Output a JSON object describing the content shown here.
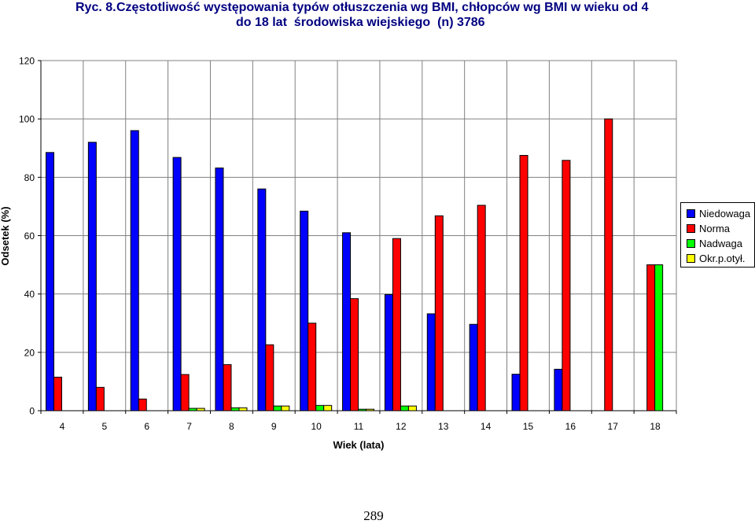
{
  "chart_data": {
    "type": "bar",
    "title_label": "Ryc. 8.",
    "title_line1": "Częstotliwość występowania typów otłuszczenia wg BMI, chłopców wg BMI w wieku od 4",
    "title_line2": "do 18 lat  środowiska wiejskiego  (n) 3786",
    "xlabel": "Wiek (lata)",
    "ylabel": "Odsetek (%)",
    "ylim": [
      0,
      120
    ],
    "yticks": [
      "0",
      "20",
      "40",
      "60",
      "80",
      "100",
      "120"
    ],
    "grid": true,
    "legend_position": "right",
    "categories": [
      "4",
      "5",
      "6",
      "7",
      "8",
      "9",
      "10",
      "11",
      "12",
      "13",
      "14",
      "15",
      "16",
      "17",
      "18"
    ],
    "series": [
      {
        "name": "Niedowaga",
        "color": "#0000FF",
        "values": [
          88.5,
          92,
          96,
          86.8,
          83.2,
          76,
          68.4,
          61,
          39.8,
          33.2,
          29.6,
          12.5,
          14.2,
          0,
          0
        ]
      },
      {
        "name": "Norma",
        "color": "#FF0000",
        "values": [
          11.5,
          8,
          4,
          12.4,
          15.8,
          22.6,
          30,
          38.4,
          59,
          66.8,
          70.4,
          87.5,
          85.8,
          100,
          50
        ]
      },
      {
        "name": "Nadwaga",
        "color": "#00FF00",
        "values": [
          0,
          0,
          0,
          0.8,
          1,
          1.6,
          1.8,
          0.5,
          1.6,
          0,
          0,
          0,
          0,
          0,
          50
        ]
      },
      {
        "name": "Okr.p.otył.",
        "color": "#FFFF00",
        "values": [
          0,
          0,
          0,
          0.8,
          1,
          1.6,
          1.8,
          0.5,
          1.6,
          0,
          0,
          0,
          0,
          0,
          0
        ]
      }
    ]
  },
  "page_number": "289"
}
